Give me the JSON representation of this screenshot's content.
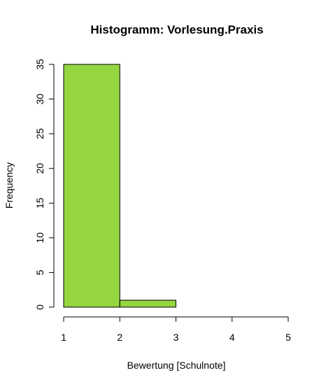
{
  "chart_data": {
    "type": "bar",
    "subtype": "histogram",
    "title": "Histogramm: Vorlesung.Praxis",
    "xlabel": "Bewertung [Schulnote]",
    "ylabel": "Frequency",
    "bins": [
      {
        "from": 1,
        "to": 2,
        "count": 35
      },
      {
        "from": 2,
        "to": 3,
        "count": 1
      },
      {
        "from": 3,
        "to": 4,
        "count": 0
      },
      {
        "from": 4,
        "to": 5,
        "count": 0
      }
    ],
    "xlim": [
      1,
      5
    ],
    "ylim": [
      0,
      35
    ],
    "x_ticks": [
      "1",
      "2",
      "3",
      "4",
      "5"
    ],
    "y_ticks": [
      "0",
      "5",
      "10",
      "15",
      "20",
      "25",
      "30",
      "35"
    ],
    "bar_color": "#95d540",
    "grid": false
  }
}
